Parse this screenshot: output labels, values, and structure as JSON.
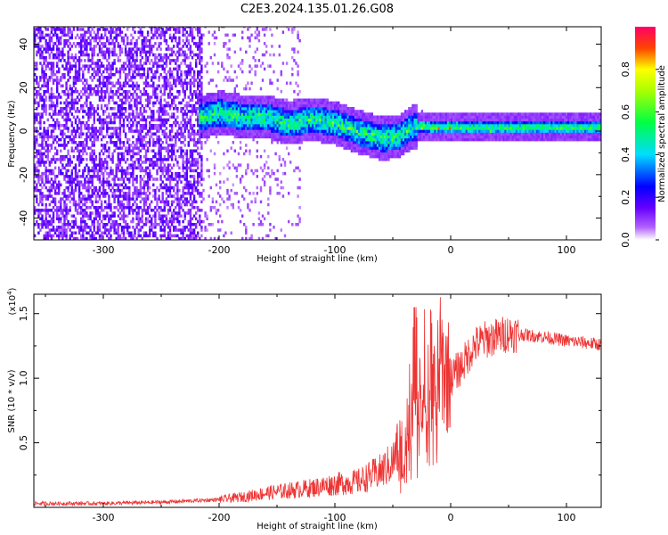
{
  "title": "C2E3.2024.135.01.26.G08",
  "chart_data": [
    {
      "type": "heatmap",
      "xlabel": "Height of straight line (km)",
      "ylabel": "Frequency (Hz)",
      "xlim": [
        -360,
        130
      ],
      "ylim": [
        -50,
        48
      ],
      "xticks": [
        -300,
        -200,
        -100,
        0,
        100
      ],
      "yticks": [
        -40,
        -20,
        0,
        20,
        40
      ],
      "colorbar": {
        "label": "Normalized spectral amplitude",
        "range": [
          0,
          1
        ],
        "ticks": [
          "0.0",
          "0.2",
          "0.4",
          "0.6",
          "0.8"
        ],
        "colors": [
          "#ffffff",
          "#8a00ff",
          "#0000ff",
          "#00ffff",
          "#00ff00",
          "#ffff00",
          "#ff0000",
          "#ff0080"
        ]
      },
      "ridge": {
        "x": [
          -215,
          -200,
          -180,
          -160,
          -140,
          -120,
          -100,
          -80,
          -60,
          -45,
          -35,
          -25,
          -15,
          0,
          20,
          40,
          60,
          80,
          100,
          130
        ],
        "y": [
          6,
          8,
          6,
          6,
          3,
          5,
          3,
          -1,
          -4,
          -3,
          1,
          2,
          1,
          1,
          1,
          1,
          1,
          1,
          1,
          1
        ]
      }
    },
    {
      "type": "line",
      "xlabel": "Height of straight line (km)",
      "ylabel": "SNR (10 * v/v)",
      "yscale_label": "(x10",
      "yscale_exponent": "4",
      "scale_factor": 10000,
      "xlim": [
        -360,
        130
      ],
      "ylim": [
        0,
        16500
      ],
      "xticks": [
        -300,
        -200,
        -100,
        0,
        100
      ],
      "yticks": [
        "0.5",
        "1.0",
        "1.5"
      ],
      "color": "#ee3333",
      "envelope": {
        "x": [
          -360,
          -300,
          -250,
          -200,
          -180,
          -160,
          -140,
          -120,
          -100,
          -80,
          -60,
          -50,
          -40,
          -35,
          -30,
          -25,
          -20,
          -15,
          -10,
          -5,
          0,
          10,
          20,
          30,
          40,
          50,
          60,
          80,
          100,
          130
        ],
        "y": [
          300,
          300,
          400,
          600,
          800,
          1100,
          1300,
          1500,
          1800,
          2000,
          2800,
          3500,
          6000,
          8500,
          11000,
          12000,
          10500,
          11000,
          11500,
          10500,
          10000,
          11000,
          12500,
          13000,
          13200,
          13500,
          13400,
          13200,
          12900,
          12600
        ]
      }
    }
  ]
}
